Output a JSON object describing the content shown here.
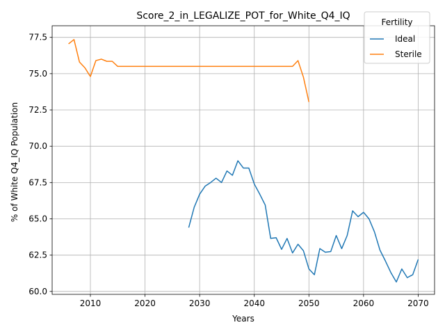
{
  "chart_data": {
    "type": "line",
    "title": "Score_2_in_LEGALIZE_POT_for_White_Q4_IQ",
    "xlabel": "Years",
    "ylabel": "% of White Q4_IQ Population",
    "xlim": [
      2003,
      2073
    ],
    "ylim": [
      59.8,
      78.3
    ],
    "xticks": [
      2010,
      2020,
      2030,
      2040,
      2050,
      2060,
      2070
    ],
    "xtick_labels": [
      "2010",
      "2020",
      "2030",
      "2040",
      "2050",
      "2060",
      "2070"
    ],
    "yticks": [
      60.0,
      62.5,
      65.0,
      67.5,
      70.0,
      72.5,
      75.0,
      77.5
    ],
    "ytick_labels": [
      "60.0",
      "62.5",
      "65.0",
      "67.5",
      "70.0",
      "72.5",
      "75.0",
      "77.5"
    ],
    "grid": true,
    "legend": {
      "title": "Fertility",
      "placement": "top-right"
    },
    "series": [
      {
        "name": "Ideal",
        "color": "#1f77b4",
        "x": [
          2028,
          2029,
          2030,
          2031,
          2032,
          2033,
          2034,
          2035,
          2036,
          2037,
          2038,
          2039,
          2040,
          2041,
          2042,
          2043,
          2044,
          2045,
          2046,
          2047,
          2048,
          2049,
          2050,
          2051,
          2052,
          2053,
          2054,
          2055,
          2056,
          2057,
          2058,
          2059,
          2060,
          2061,
          2062,
          2063,
          2064,
          2065,
          2066,
          2067,
          2068,
          2069,
          2070
        ],
        "y": [
          64.4,
          65.8,
          66.7,
          67.25,
          67.5,
          67.8,
          67.5,
          68.3,
          68.0,
          69.0,
          68.5,
          68.5,
          67.4,
          66.7,
          65.95,
          63.65,
          63.7,
          62.9,
          63.65,
          62.65,
          63.25,
          62.8,
          61.55,
          61.15,
          62.95,
          62.7,
          62.75,
          63.85,
          62.95,
          63.85,
          65.55,
          65.15,
          65.45,
          65.0,
          64.1,
          62.85,
          62.1,
          61.3,
          60.65,
          61.55,
          60.95,
          61.15,
          62.2
        ]
      },
      {
        "name": "Sterile",
        "color": "#ff7f0e",
        "x": [
          2006,
          2007,
          2008,
          2009,
          2010,
          2011,
          2012,
          2013,
          2014,
          2015,
          2016,
          2017,
          2018,
          2019,
          2020,
          2021,
          2022,
          2023,
          2024,
          2025,
          2026,
          2027,
          2028,
          2029,
          2030,
          2031,
          2032,
          2033,
          2034,
          2035,
          2036,
          2037,
          2038,
          2039,
          2040,
          2041,
          2042,
          2043,
          2044,
          2045,
          2046,
          2047,
          2048,
          2049,
          2050
        ],
        "y": [
          77.05,
          77.35,
          75.8,
          75.4,
          74.8,
          75.9,
          76.0,
          75.85,
          75.85,
          75.5,
          75.5,
          75.5,
          75.5,
          75.5,
          75.5,
          75.5,
          75.5,
          75.5,
          75.5,
          75.5,
          75.5,
          75.5,
          75.5,
          75.5,
          75.5,
          75.5,
          75.5,
          75.5,
          75.5,
          75.5,
          75.5,
          75.5,
          75.5,
          75.5,
          75.5,
          75.5,
          75.5,
          75.5,
          75.5,
          75.5,
          75.5,
          75.5,
          75.9,
          74.75,
          73.05
        ]
      }
    ]
  }
}
